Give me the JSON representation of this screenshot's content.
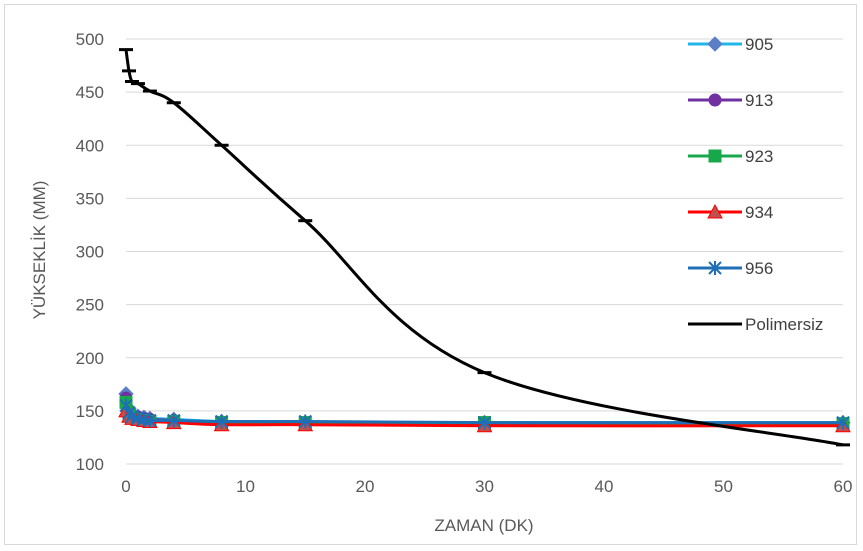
{
  "chart_data": {
    "type": "line",
    "title": "",
    "xlabel": "ZAMAN (DK)",
    "ylabel": "YÜKSEKLİK (MM)",
    "xlim": [
      0,
      60
    ],
    "ylim": [
      100,
      500
    ],
    "xticks": [
      0,
      10,
      20,
      30,
      40,
      50,
      60
    ],
    "yticks": [
      100,
      150,
      200,
      250,
      300,
      350,
      400,
      450,
      500
    ],
    "grid": "horizontal",
    "legend_position": "right",
    "series": [
      {
        "name": "905",
        "color": "#1fb6e8",
        "marker": "diamond",
        "x": [
          0,
          0.25,
          0.5,
          1,
          1.5,
          2,
          4,
          8,
          15,
          30,
          60
        ],
        "y": [
          166,
          152,
          147,
          145,
          144,
          143,
          142,
          140,
          139,
          139,
          139
        ]
      },
      {
        "name": "913",
        "color": "#7030a0",
        "marker": "circle",
        "x": [
          0,
          0.25,
          0.5,
          1,
          1.5,
          2,
          4,
          8,
          15,
          30,
          60
        ],
        "y": [
          162,
          150,
          146,
          144,
          143,
          142,
          141,
          139,
          138,
          138,
          138
        ]
      },
      {
        "name": "923",
        "color": "#17a84b",
        "marker": "square",
        "x": [
          0,
          0.25,
          0.5,
          1,
          1.5,
          2,
          4,
          8,
          15,
          30,
          60
        ],
        "y": [
          158,
          148,
          144,
          142,
          141,
          140,
          140,
          139,
          139,
          139,
          138
        ]
      },
      {
        "name": "934",
        "color": "#ff0000",
        "marker": "triangle",
        "x": [
          0,
          0.25,
          0.5,
          1,
          1.5,
          2,
          4,
          8,
          15,
          30,
          60
        ],
        "y": [
          150,
          145,
          143,
          142,
          141,
          140,
          139,
          137,
          137,
          136,
          136
        ]
      },
      {
        "name": "956",
        "color": "#1f6fb7",
        "marker": "star",
        "x": [
          0,
          0.25,
          0.5,
          1,
          1.5,
          2,
          4,
          8,
          15,
          30,
          60
        ],
        "y": [
          155,
          148,
          145,
          143,
          142,
          141,
          141,
          140,
          140,
          139,
          139
        ]
      },
      {
        "name": "Polimersiz",
        "color": "#000000",
        "marker": "dash",
        "x": [
          0,
          0.25,
          0.5,
          1,
          2,
          4,
          8,
          15,
          30,
          60
        ],
        "y": [
          490,
          470,
          460,
          458,
          451,
          440,
          400,
          329,
          186,
          118
        ]
      }
    ]
  }
}
